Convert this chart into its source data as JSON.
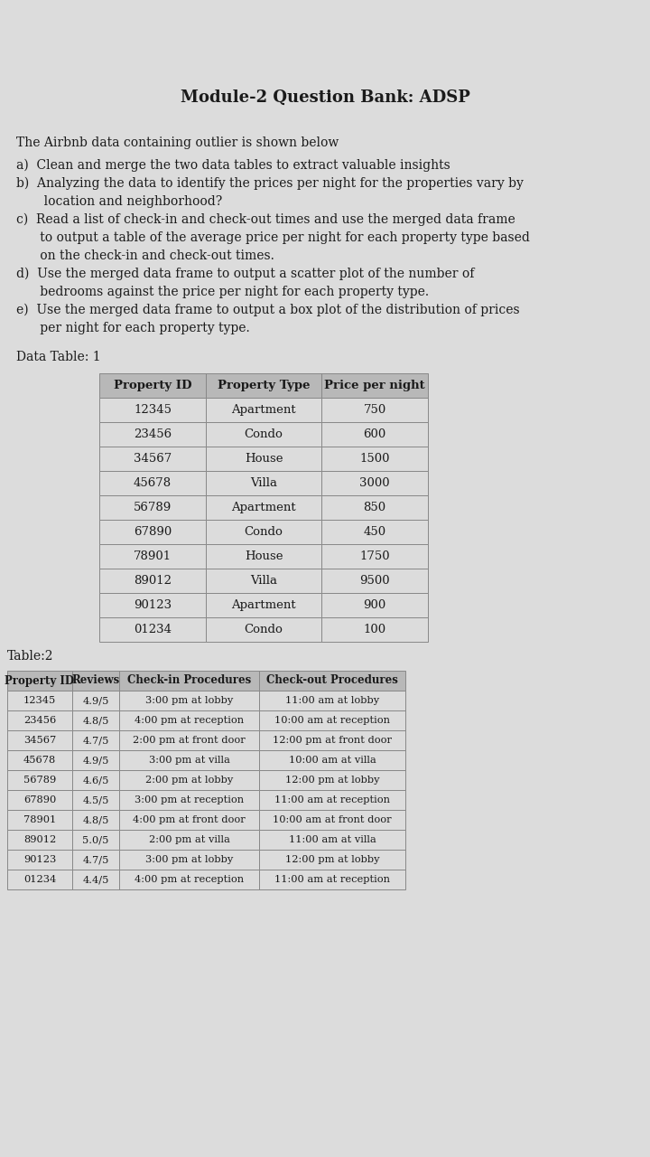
{
  "title": "Module-2 Question Bank: ADSP",
  "intro_text": "The Airbnb data containing outlier is shown below",
  "q_lines": [
    "a)  Clean and merge the two data tables to extract valuable insights",
    "b)  Analyzing the data to identify the prices per night for the properties vary by",
    "       location and neighborhood?",
    "c)  Read a list of check-in and check-out times and use the merged data frame",
    "      to output a table of the average price per night for each property type based",
    "      on the check-in and check-out times.",
    "d)  Use the merged data frame to output a scatter plot of the number of",
    "      bedrooms against the price per night for each property type.",
    "e)  Use the merged data frame to output a box plot of the distribution of prices",
    "      per night for each property type."
  ],
  "table1_label": "Data Table: 1",
  "table1_headers": [
    "Property ID",
    "Property Type",
    "Price per night"
  ],
  "table1_data": [
    [
      "12345",
      "Apartment",
      "750"
    ],
    [
      "23456",
      "Condo",
      "600"
    ],
    [
      "34567",
      "House",
      "1500"
    ],
    [
      "45678",
      "Villa",
      "3000"
    ],
    [
      "56789",
      "Apartment",
      "850"
    ],
    [
      "67890",
      "Condo",
      "450"
    ],
    [
      "78901",
      "House",
      "1750"
    ],
    [
      "89012",
      "Villa",
      "9500"
    ],
    [
      "90123",
      "Apartment",
      "900"
    ],
    [
      "01234",
      "Condo",
      "100"
    ]
  ],
  "table2_label": "Table:2",
  "table2_headers": [
    "Property ID",
    "Reviews",
    "Check-in Procedures",
    "Check-out Procedures"
  ],
  "table2_data": [
    [
      "12345",
      "4.9/5",
      "3:00 pm at lobby",
      "11:00 am at lobby"
    ],
    [
      "23456",
      "4.8/5",
      "4:00 pm at reception",
      "10:00 am at reception"
    ],
    [
      "34567",
      "4.7/5",
      "2:00 pm at front door",
      "12:00 pm at front door"
    ],
    [
      "45678",
      "4.9/5",
      "3:00 pm at villa",
      "10:00 am at villa"
    ],
    [
      "56789",
      "4.6/5",
      "2:00 pm at lobby",
      "12:00 pm at lobby"
    ],
    [
      "67890",
      "4.5/5",
      "3:00 pm at reception",
      "11:00 am at reception"
    ],
    [
      "78901",
      "4.8/5",
      "4:00 pm at front door",
      "10:00 am at front door"
    ],
    [
      "89012",
      "5.0/5",
      "2:00 pm at villa",
      "11:00 am at villa"
    ],
    [
      "90123",
      "4.7/5",
      "3:00 pm at lobby",
      "12:00 pm at lobby"
    ],
    [
      "01234",
      "4.4/5",
      "4:00 pm at reception",
      "11:00 am at reception"
    ]
  ],
  "bg_color": "#c8c8c8",
  "paper_color": "#dcdcdc",
  "cell_color": "#dcdcdc",
  "header_color": "#b8b8b8",
  "border_color": "#888888"
}
